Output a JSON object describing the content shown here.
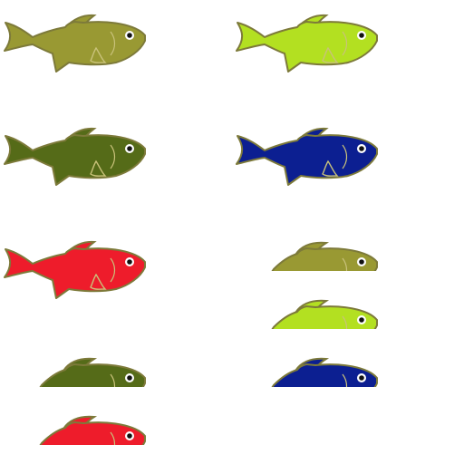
{
  "sprite_sheet": {
    "background": "#ffffff",
    "outline_color": "#7d7a3a",
    "detail_color": "#c9c27a",
    "eye_ring_color": "#ffffff",
    "pupil_color": "#111111",
    "palette": {
      "olive": "#999933",
      "lime": "#b3e021",
      "dark-olive": "#556b18",
      "navy": "#0c1f91",
      "red": "#ee1c2b"
    },
    "sprites": [
      {
        "name": "fish-olive",
        "color": "olive",
        "pose": "horizontal"
      },
      {
        "name": "fish-lime",
        "color": "lime",
        "pose": "horizontal"
      },
      {
        "name": "fish-dark-olive",
        "color": "dark-olive",
        "pose": "horizontal"
      },
      {
        "name": "fish-navy",
        "color": "navy",
        "pose": "horizontal"
      },
      {
        "name": "fish-red",
        "color": "red",
        "pose": "horizontal"
      },
      {
        "name": "fish-olive-angled",
        "color": "olive",
        "pose": "angled"
      },
      {
        "name": "fish-lime-angled",
        "color": "lime",
        "pose": "angled"
      },
      {
        "name": "fish-dark-olive-angled",
        "color": "dark-olive",
        "pose": "angled"
      },
      {
        "name": "fish-navy-angled",
        "color": "navy",
        "pose": "angled"
      },
      {
        "name": "fish-red-angled",
        "color": "red",
        "pose": "angled"
      }
    ]
  }
}
